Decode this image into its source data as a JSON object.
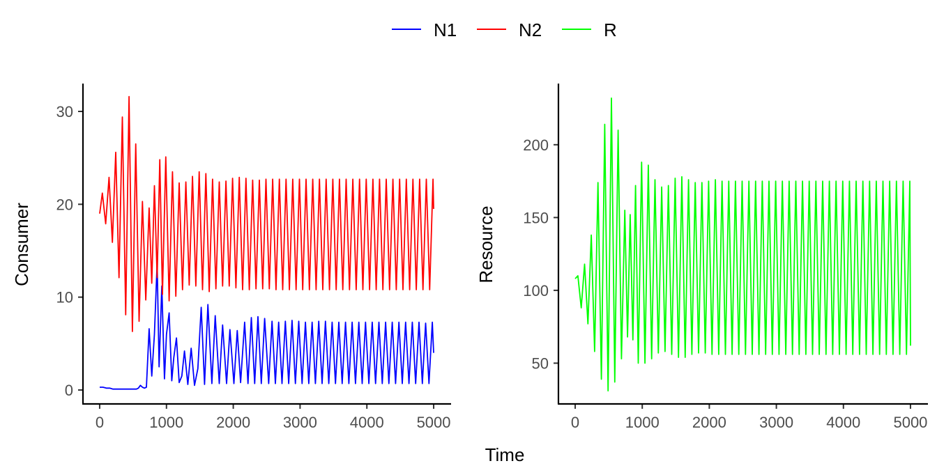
{
  "legend": {
    "items": [
      {
        "label": "N1",
        "color": "#0000ff"
      },
      {
        "label": "N2",
        "color": "#ff0000"
      },
      {
        "label": "R",
        "color": "#00ff00"
      }
    ]
  },
  "x_title": "Time",
  "chart_data": [
    {
      "type": "line",
      "ylabel": "Consumer",
      "xlim": [
        -250,
        5250
      ],
      "ylim": [
        -1.5,
        33
      ],
      "x_ticks": [
        0,
        1000,
        2000,
        3000,
        4000,
        5000
      ],
      "y_ticks": [
        0,
        10,
        20,
        30
      ],
      "grid": false,
      "legend_position": "top",
      "series": [
        {
          "name": "N1",
          "color": "#0000ff",
          "x": [
            0,
            50,
            100,
            150,
            200,
            250,
            300,
            350,
            400,
            450,
            500,
            550,
            580,
            610,
            640,
            670,
            700,
            740,
            780,
            820,
            860,
            890,
            930,
            970,
            1000,
            1040,
            1080,
            1110,
            1150,
            1190,
            1230,
            1270,
            1320,
            1370,
            1420,
            1470,
            1520,
            1570,
            1620,
            1680,
            1730,
            1790,
            1840,
            1900,
            1950,
            2010,
            2060,
            2110,
            2170,
            2220,
            2270,
            2320,
            2370,
            2420,
            2470,
            2530,
            2580,
            2630,
            2680,
            2730,
            2780,
            2830,
            2880,
            2930,
            2980,
            3030,
            3080,
            3130,
            3180,
            3230,
            3280,
            3330,
            3380,
            3430,
            3480,
            3530,
            3580,
            3630,
            3680,
            3730,
            3780,
            3830,
            3880,
            3930,
            3980,
            4030,
            4080,
            4130,
            4180,
            4230,
            4280,
            4330,
            4380,
            4430,
            4480,
            4530,
            4580,
            4630,
            4680,
            4730,
            4780,
            4830,
            4880,
            4930,
            4980,
            5000
          ],
          "y": [
            0.3,
            0.3,
            0.2,
            0.2,
            0.1,
            0.1,
            0.1,
            0.1,
            0.1,
            0.1,
            0.1,
            0.1,
            0.2,
            0.5,
            0.3,
            0.2,
            0.3,
            6.6,
            1.5,
            6.0,
            13.7,
            2.5,
            11.2,
            1.2,
            6.0,
            8.3,
            1.0,
            3.5,
            5.6,
            0.8,
            1.5,
            4.2,
            0.6,
            4.5,
            0.5,
            2.3,
            8.9,
            0.6,
            9.2,
            0.7,
            8.0,
            0.7,
            7.0,
            0.7,
            6.5,
            0.7,
            6.4,
            0.8,
            7.3,
            0.7,
            7.8,
            0.7,
            7.9,
            0.7,
            7.7,
            0.7,
            7.4,
            0.7,
            7.3,
            0.7,
            7.4,
            0.7,
            7.5,
            0.7,
            7.4,
            0.7,
            7.3,
            0.7,
            7.3,
            0.7,
            7.4,
            0.7,
            7.4,
            0.7,
            7.3,
            0.7,
            7.3,
            0.7,
            7.3,
            0.7,
            7.3,
            0.7,
            7.3,
            0.7,
            7.3,
            0.7,
            7.3,
            0.7,
            7.3,
            0.7,
            7.3,
            0.7,
            7.3,
            0.7,
            7.3,
            0.7,
            7.3,
            0.7,
            7.3,
            0.7,
            7.3,
            0.7,
            7.2,
            0.7,
            7.3,
            4.0
          ]
        },
        {
          "name": "N2",
          "color": "#ff0000",
          "x": [
            0,
            40,
            90,
            140,
            190,
            240,
            290,
            340,
            390,
            440,
            490,
            540,
            590,
            640,
            690,
            740,
            780,
            820,
            860,
            900,
            940,
            990,
            1040,
            1090,
            1140,
            1190,
            1240,
            1290,
            1340,
            1390,
            1440,
            1490,
            1540,
            1590,
            1640,
            1690,
            1740,
            1790,
            1840,
            1890,
            1940,
            1990,
            2040,
            2090,
            2140,
            2190,
            2240,
            2290,
            2340,
            2390,
            2440,
            2490,
            2540,
            2590,
            2640,
            2690,
            2740,
            2790,
            2840,
            2890,
            2940,
            2990,
            3040,
            3090,
            3140,
            3190,
            3240,
            3290,
            3340,
            3390,
            3440,
            3490,
            3540,
            3590,
            3640,
            3690,
            3740,
            3790,
            3840,
            3890,
            3940,
            3990,
            4040,
            4090,
            4140,
            4190,
            4240,
            4290,
            4340,
            4390,
            4440,
            4490,
            4540,
            4590,
            4640,
            4690,
            4740,
            4790,
            4840,
            4890,
            4940,
            4990,
            5000
          ],
          "y": [
            19.0,
            21.2,
            17.9,
            22.9,
            15.9,
            25.6,
            12.1,
            29.4,
            8.1,
            31.6,
            6.3,
            26.5,
            7.4,
            20.3,
            9.7,
            19.6,
            11.5,
            22.0,
            12.1,
            24.8,
            10.3,
            25.1,
            9.6,
            23.5,
            10.1,
            22.3,
            10.8,
            22.4,
            11.3,
            23.0,
            11.2,
            23.5,
            10.8,
            23.3,
            10.6,
            22.7,
            10.9,
            22.4,
            11.2,
            22.5,
            11.2,
            22.8,
            11.0,
            22.9,
            10.8,
            22.8,
            10.8,
            22.6,
            10.9,
            22.6,
            10.9,
            22.7,
            10.9,
            22.7,
            10.8,
            22.7,
            10.8,
            22.7,
            10.8,
            22.7,
            10.8,
            22.7,
            10.8,
            22.7,
            10.8,
            22.7,
            10.8,
            22.7,
            10.8,
            22.7,
            10.8,
            22.7,
            10.8,
            22.7,
            10.8,
            22.7,
            10.8,
            22.7,
            10.8,
            22.7,
            10.8,
            22.7,
            10.8,
            22.7,
            10.8,
            22.7,
            10.8,
            22.7,
            10.8,
            22.7,
            10.8,
            22.7,
            10.8,
            22.7,
            10.8,
            22.7,
            10.8,
            22.7,
            10.8,
            22.7,
            10.8,
            22.7,
            19.5
          ]
        }
      ]
    },
    {
      "type": "line",
      "ylabel": "Resource",
      "xlim": [
        -250,
        5250
      ],
      "ylim": [
        22,
        242
      ],
      "x_ticks": [
        0,
        1000,
        2000,
        3000,
        4000,
        5000
      ],
      "y_ticks": [
        50,
        100,
        150,
        200
      ],
      "grid": false,
      "series": [
        {
          "name": "R",
          "color": "#00ff00",
          "x": [
            0,
            40,
            90,
            140,
            190,
            240,
            290,
            340,
            390,
            440,
            490,
            540,
            590,
            640,
            690,
            740,
            780,
            820,
            860,
            900,
            940,
            990,
            1040,
            1090,
            1140,
            1190,
            1240,
            1290,
            1340,
            1390,
            1440,
            1490,
            1540,
            1590,
            1640,
            1690,
            1740,
            1790,
            1840,
            1890,
            1940,
            1990,
            2040,
            2090,
            2140,
            2190,
            2240,
            2290,
            2340,
            2390,
            2440,
            2490,
            2540,
            2590,
            2640,
            2690,
            2740,
            2790,
            2840,
            2890,
            2940,
            2990,
            3040,
            3090,
            3140,
            3190,
            3240,
            3290,
            3340,
            3390,
            3440,
            3490,
            3540,
            3590,
            3640,
            3690,
            3740,
            3790,
            3840,
            3890,
            3940,
            3990,
            4040,
            4090,
            4140,
            4190,
            4240,
            4290,
            4340,
            4390,
            4440,
            4490,
            4540,
            4590,
            4640,
            4690,
            4740,
            4790,
            4840,
            4890,
            4940,
            4990,
            5000
          ],
          "y": [
            108,
            110,
            88,
            118,
            77,
            138,
            58,
            174,
            39,
            214,
            31,
            232,
            37,
            210,
            53,
            155,
            68,
            152,
            66,
            172,
            50,
            188,
            50,
            186,
            53,
            176,
            57,
            171,
            58,
            172,
            56,
            177,
            54,
            178,
            54,
            176,
            56,
            174,
            57,
            174,
            57,
            175,
            56,
            176,
            56,
            175,
            56,
            175,
            56,
            175,
            56,
            175,
            56,
            175,
            56,
            175,
            56,
            175,
            56,
            175,
            56,
            175,
            56,
            175,
            56,
            175,
            56,
            175,
            56,
            175,
            56,
            175,
            56,
            175,
            56,
            175,
            56,
            175,
            56,
            175,
            56,
            175,
            56,
            175,
            56,
            175,
            56,
            175,
            56,
            175,
            56,
            175,
            56,
            175,
            56,
            175,
            56,
            175,
            56,
            175,
            56,
            175,
            62
          ]
        }
      ]
    }
  ]
}
